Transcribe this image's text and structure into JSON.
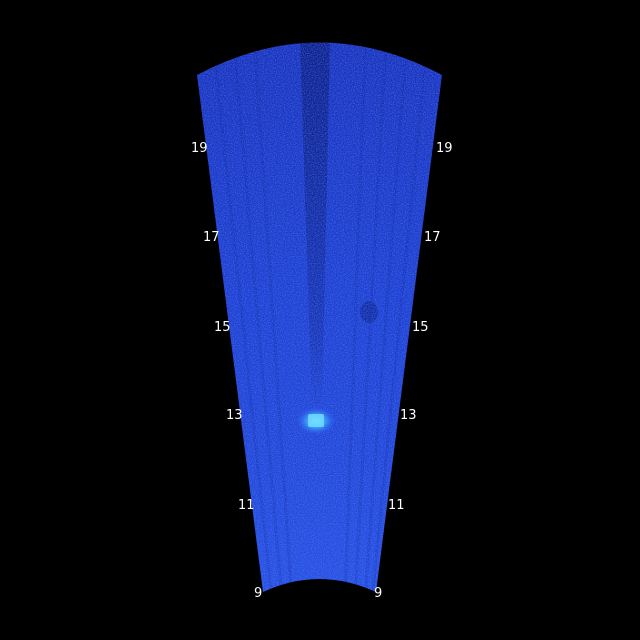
{
  "sonar": {
    "range_labels_left": [
      "9",
      "11",
      "13",
      "15",
      "17",
      "19"
    ],
    "range_labels_right": [
      "9",
      "11",
      "13",
      "15",
      "17",
      "19"
    ],
    "colors": {
      "background": "#000000",
      "fan_base": "#1a36c8",
      "fan_bright": "#2f63ff",
      "target": "#5fd0ff",
      "label": "#ffffff"
    }
  }
}
